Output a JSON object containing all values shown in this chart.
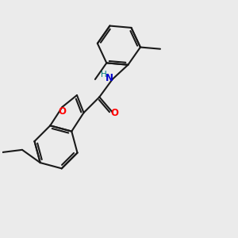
{
  "background_color": "#ebebeb",
  "bond_color": "#1a1a1a",
  "O_color": "#ff0000",
  "N_color": "#0000cd",
  "H_color": "#008080",
  "line_width": 1.5,
  "figsize": [
    3.0,
    3.0
  ],
  "dpi": 100,
  "xlim": [
    0,
    10
  ],
  "ylim": [
    0,
    10
  ]
}
